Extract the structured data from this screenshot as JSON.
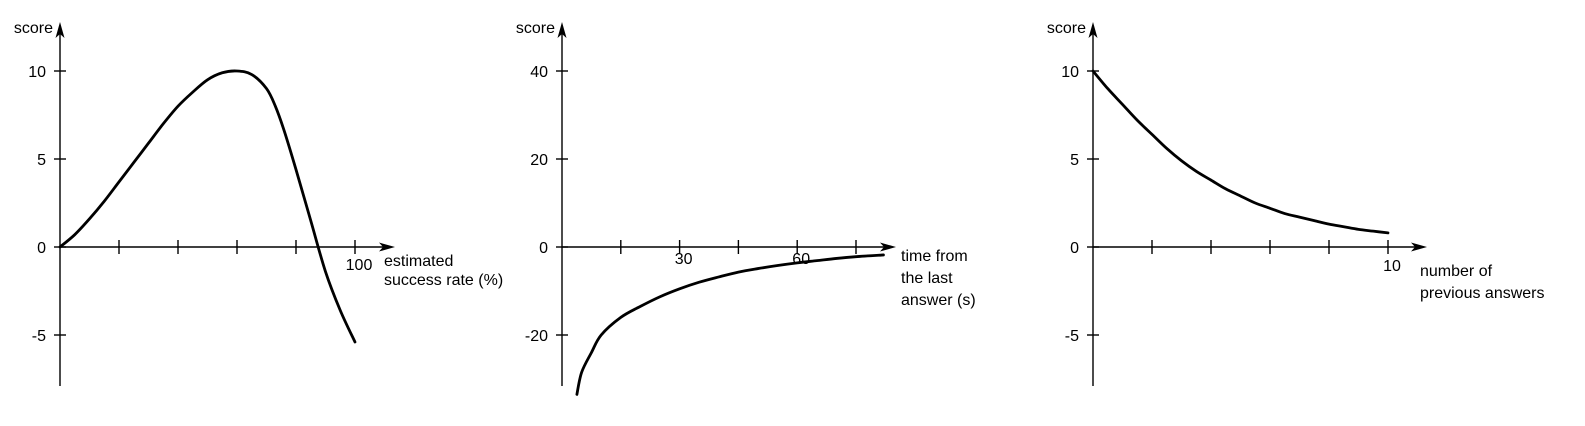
{
  "chart_data": [
    {
      "type": "line",
      "ylabel": "score",
      "xlabel_lines": [
        "estimated",
        "success rate (%)"
      ],
      "xlim": [
        0,
        100
      ],
      "ylim": [
        -8,
        10
      ],
      "x_ticks": [
        20,
        40,
        60,
        80,
        100
      ],
      "x_tick_labels": [
        {
          "value": 100,
          "label": "100"
        }
      ],
      "y_ticks": [
        {
          "value": 10,
          "label": "10"
        },
        {
          "value": 5,
          "label": "5"
        },
        {
          "value": 0,
          "label": "0"
        },
        {
          "value": -5,
          "label": "-5"
        }
      ],
      "series": [
        {
          "x": [
            0,
            5,
            10,
            15,
            20,
            25,
            30,
            35,
            40,
            45,
            50,
            55,
            60,
            65,
            70,
            73,
            76,
            80,
            85,
            90,
            95,
            100
          ],
          "y": [
            0,
            0.7,
            1.6,
            2.6,
            3.7,
            4.8,
            5.9,
            7.0,
            8.0,
            8.8,
            9.5,
            9.9,
            10.0,
            9.8,
            9.0,
            8.0,
            6.6,
            4.4,
            1.5,
            -1.4,
            -3.6,
            -5.4
          ]
        }
      ]
    },
    {
      "type": "line",
      "ylabel": "score",
      "xlabel_lines": [
        "time from",
        "the last",
        "answer (s)"
      ],
      "xlim": [
        0,
        84
      ],
      "ylim": [
        -34,
        46
      ],
      "x_ticks": [
        15,
        30,
        45,
        60,
        75
      ],
      "x_tick_labels": [
        {
          "value": 30,
          "label": "30"
        },
        {
          "value": 60,
          "label": "60"
        }
      ],
      "y_ticks": [
        {
          "value": 40,
          "label": "40"
        },
        {
          "value": 20,
          "label": "20"
        },
        {
          "value": 0,
          "label": "0"
        },
        {
          "value": -20,
          "label": "-20"
        }
      ],
      "series": [
        {
          "x": [
            3.8,
            5,
            7.5,
            10,
            15,
            20,
            25,
            30,
            35,
            40,
            45,
            50,
            55,
            60,
            65,
            70,
            75,
            82
          ],
          "y": [
            -33.5,
            -28.5,
            -24.0,
            -20.0,
            -16.0,
            -13.5,
            -11.3,
            -9.5,
            -8.0,
            -6.8,
            -5.7,
            -4.9,
            -4.2,
            -3.6,
            -3.1,
            -2.6,
            -2.2,
            -1.8
          ]
        }
      ]
    },
    {
      "type": "line",
      "ylabel": "score",
      "xlabel_lines": [
        "number of",
        "previous answers"
      ],
      "xlim": [
        0,
        10
      ],
      "ylim": [
        -8,
        10
      ],
      "x_ticks": [
        2,
        4,
        6,
        8,
        10
      ],
      "x_tick_labels": [
        {
          "value": 10,
          "label": "10"
        }
      ],
      "y_ticks": [
        {
          "value": 10,
          "label": "10"
        },
        {
          "value": 5,
          "label": "5"
        },
        {
          "value": 0,
          "label": "0"
        },
        {
          "value": -5,
          "label": "-5"
        }
      ],
      "series": [
        {
          "x": [
            0,
            0.5,
            1,
            1.5,
            2,
            2.5,
            3,
            3.5,
            4,
            4.5,
            5,
            5.5,
            6,
            6.5,
            7,
            7.5,
            8,
            8.5,
            9,
            9.5,
            10
          ],
          "y": [
            10,
            9.0,
            8.1,
            7.2,
            6.4,
            5.6,
            4.9,
            4.3,
            3.8,
            3.3,
            2.9,
            2.5,
            2.2,
            1.9,
            1.7,
            1.5,
            1.3,
            1.15,
            1.0,
            0.9,
            0.8
          ]
        }
      ]
    }
  ]
}
